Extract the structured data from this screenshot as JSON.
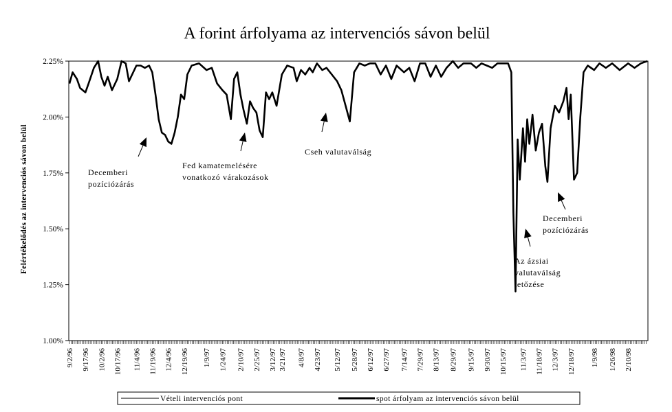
{
  "chart_data": {
    "type": "line",
    "title": "A forint árfolyama az intervenciós sávon belül",
    "xlabel": "",
    "ylabel": "Felértékelődés az intervenciós sávon belül",
    "ylim": [
      1.0,
      2.25
    ],
    "y_ticks": [
      "2.25%",
      "2.00%",
      "1.75%",
      "1.50%",
      "1.25%",
      "1.00%"
    ],
    "x_tick_labels": [
      "9/2/96",
      "9/17/96",
      "10/2/96",
      "10/17/96",
      "11/4/96",
      "11/19/96",
      "12/4/96",
      "12/19/96",
      "1/9/97",
      "1/24/97",
      "2/10/97",
      "2/25/97",
      "3/12/97",
      "3/21/97",
      "4/8/97",
      "4/23/97",
      "5/12/97",
      "5/28/97",
      "6/12/97",
      "6/27/97",
      "7/14/97",
      "7/29/97",
      "8/13/97",
      "8/29/97",
      "9/15/97",
      "9/30/97",
      "10/15/97",
      "11/3/97",
      "11/18/97",
      "12/3/97",
      "12/18/97",
      "1/9/98",
      "1/26/98",
      "2/10/98"
    ],
    "grid": false,
    "legend": "bottom",
    "series": [
      {
        "name": "Vételi intervenciós pont",
        "values": [
          2.25,
          2.25,
          2.25,
          2.25,
          2.25,
          2.25,
          2.25,
          2.25,
          2.25,
          2.25,
          2.25,
          2.25,
          2.25,
          2.25,
          2.25,
          2.25,
          2.25,
          2.25,
          2.25,
          2.25,
          2.25,
          2.25,
          2.25,
          2.25,
          2.25,
          2.25,
          2.25,
          2.25,
          2.25,
          2.25,
          2.25,
          2.25,
          2.25,
          2.25
        ]
      },
      {
        "name": "spot árfolyam az intervenciós sávon belül",
        "points": [
          [
            "9/2/96",
            2.15
          ],
          [
            "9/5/96",
            2.2
          ],
          [
            "9/9/96",
            2.17
          ],
          [
            "9/12/96",
            2.13
          ],
          [
            "9/17/96",
            2.11
          ],
          [
            "9/20/96",
            2.15
          ],
          [
            "9/25/96",
            2.22
          ],
          [
            "9/29/96",
            2.25
          ],
          [
            "10/2/96",
            2.18
          ],
          [
            "10/5/96",
            2.14
          ],
          [
            "10/8/96",
            2.18
          ],
          [
            "10/12/96",
            2.12
          ],
          [
            "10/17/96",
            2.17
          ],
          [
            "10/21/96",
            2.25
          ],
          [
            "10/25/96",
            2.24
          ],
          [
            "10/28/96",
            2.16
          ],
          [
            "11/4/96",
            2.23
          ],
          [
            "11/8/96",
            2.23
          ],
          [
            "11/12/96",
            2.22
          ],
          [
            "11/16/96",
            2.23
          ],
          [
            "11/19/96",
            2.2
          ],
          [
            "11/22/96",
            2.1
          ],
          [
            "11/25/96",
            1.99
          ],
          [
            "11/28/96",
            1.93
          ],
          [
            "12/1/96",
            1.92
          ],
          [
            "12/4/96",
            1.89
          ],
          [
            "12/7/96",
            1.88
          ],
          [
            "12/10/96",
            1.93
          ],
          [
            "12/13/96",
            2.0
          ],
          [
            "12/16/96",
            2.1
          ],
          [
            "12/19/96",
            2.08
          ],
          [
            "12/22/96",
            2.19
          ],
          [
            "12/26/96",
            2.23
          ],
          [
            "1/2/97",
            2.24
          ],
          [
            "1/9/97",
            2.21
          ],
          [
            "1/14/97",
            2.22
          ],
          [
            "1/19/97",
            2.15
          ],
          [
            "1/24/97",
            2.12
          ],
          [
            "1/28/97",
            2.1
          ],
          [
            "2/1/97",
            1.99
          ],
          [
            "2/4/97",
            2.17
          ],
          [
            "2/7/97",
            2.2
          ],
          [
            "2/10/97",
            2.1
          ],
          [
            "2/13/97",
            2.03
          ],
          [
            "2/16/97",
            1.97
          ],
          [
            "2/19/97",
            2.07
          ],
          [
            "2/22/97",
            2.04
          ],
          [
            "2/25/97",
            2.02
          ],
          [
            "2/28/97",
            1.94
          ],
          [
            "3/3/97",
            1.91
          ],
          [
            "3/6/97",
            2.11
          ],
          [
            "3/9/97",
            2.08
          ],
          [
            "3/12/97",
            2.11
          ],
          [
            "3/16/97",
            2.05
          ],
          [
            "3/21/97",
            2.19
          ],
          [
            "3/26/97",
            2.23
          ],
          [
            "4/1/97",
            2.22
          ],
          [
            "4/4/97",
            2.16
          ],
          [
            "4/8/97",
            2.21
          ],
          [
            "4/12/97",
            2.19
          ],
          [
            "4/16/97",
            2.22
          ],
          [
            "4/19/97",
            2.2
          ],
          [
            "4/23/97",
            2.24
          ],
          [
            "4/28/97",
            2.21
          ],
          [
            "5/2/97",
            2.22
          ],
          [
            "5/7/97",
            2.19
          ],
          [
            "5/12/97",
            2.16
          ],
          [
            "5/16/97",
            2.12
          ],
          [
            "5/20/97",
            2.05
          ],
          [
            "5/24/97",
            1.98
          ],
          [
            "5/28/97",
            2.2
          ],
          [
            "6/2/97",
            2.24
          ],
          [
            "6/7/97",
            2.23
          ],
          [
            "6/12/97",
            2.24
          ],
          [
            "6/17/97",
            2.24
          ],
          [
            "6/22/97",
            2.19
          ],
          [
            "6/27/97",
            2.23
          ],
          [
            "7/2/97",
            2.17
          ],
          [
            "7/7/97",
            2.23
          ],
          [
            "7/14/97",
            2.2
          ],
          [
            "7/19/97",
            2.22
          ],
          [
            "7/24/97",
            2.16
          ],
          [
            "7/29/97",
            2.24
          ],
          [
            "8/3/97",
            2.24
          ],
          [
            "8/8/97",
            2.18
          ],
          [
            "8/13/97",
            2.23
          ],
          [
            "8/18/97",
            2.18
          ],
          [
            "8/23/97",
            2.22
          ],
          [
            "8/29/97",
            2.25
          ],
          [
            "9/3/97",
            2.22
          ],
          [
            "9/8/97",
            2.24
          ],
          [
            "9/15/97",
            2.24
          ],
          [
            "9/20/97",
            2.22
          ],
          [
            "9/25/97",
            2.24
          ],
          [
            "9/30/97",
            2.23
          ],
          [
            "10/5/97",
            2.22
          ],
          [
            "10/10/97",
            2.24
          ],
          [
            "10/15/97",
            2.24
          ],
          [
            "10/20/97",
            2.24
          ],
          [
            "10/23/97",
            2.2
          ],
          [
            "10/25/97",
            1.57
          ],
          [
            "10/27/97",
            1.22
          ],
          [
            "10/29/97",
            1.9
          ],
          [
            "10/31/97",
            1.72
          ],
          [
            "11/3/97",
            1.95
          ],
          [
            "11/5/97",
            1.8
          ],
          [
            "11/7/97",
            1.99
          ],
          [
            "11/9/97",
            1.88
          ],
          [
            "11/12/97",
            2.01
          ],
          [
            "11/15/97",
            1.85
          ],
          [
            "11/18/97",
            1.93
          ],
          [
            "11/21/97",
            1.97
          ],
          [
            "11/24/97",
            1.78
          ],
          [
            "11/26/97",
            1.71
          ],
          [
            "11/29/97",
            1.95
          ],
          [
            "12/3/97",
            2.05
          ],
          [
            "12/7/97",
            2.02
          ],
          [
            "12/11/97",
            2.07
          ],
          [
            "12/14/97",
            2.13
          ],
          [
            "12/16/97",
            1.99
          ],
          [
            "12/18/97",
            2.1
          ],
          [
            "12/21/97",
            1.72
          ],
          [
            "12/24/97",
            1.75
          ],
          [
            "12/27/97",
            2.0
          ],
          [
            "12/30/97",
            2.2
          ],
          [
            "1/3/98",
            2.23
          ],
          [
            "1/9/98",
            2.21
          ],
          [
            "1/14/98",
            2.24
          ],
          [
            "1/20/98",
            2.22
          ],
          [
            "1/26/98",
            2.24
          ],
          [
            "2/2/98",
            2.21
          ],
          [
            "2/10/98",
            2.24
          ],
          [
            "2/16/98",
            2.22
          ],
          [
            "2/22/98",
            2.24
          ],
          [
            "2/28/98",
            2.25
          ]
        ]
      }
    ],
    "annotations": [
      {
        "lines": [
          "Decemberi",
          "pozíciózárás"
        ]
      },
      {
        "lines": [
          "Fed kamatemelésére",
          "vonatkozó várakozások"
        ]
      },
      {
        "lines": [
          "Cseh valutaválság"
        ]
      },
      {
        "lines": [
          "Az ázsiai",
          "valutaválság",
          "tetőzése"
        ]
      },
      {
        "lines": [
          "Decemberi",
          "pozíciózárás"
        ]
      }
    ]
  }
}
